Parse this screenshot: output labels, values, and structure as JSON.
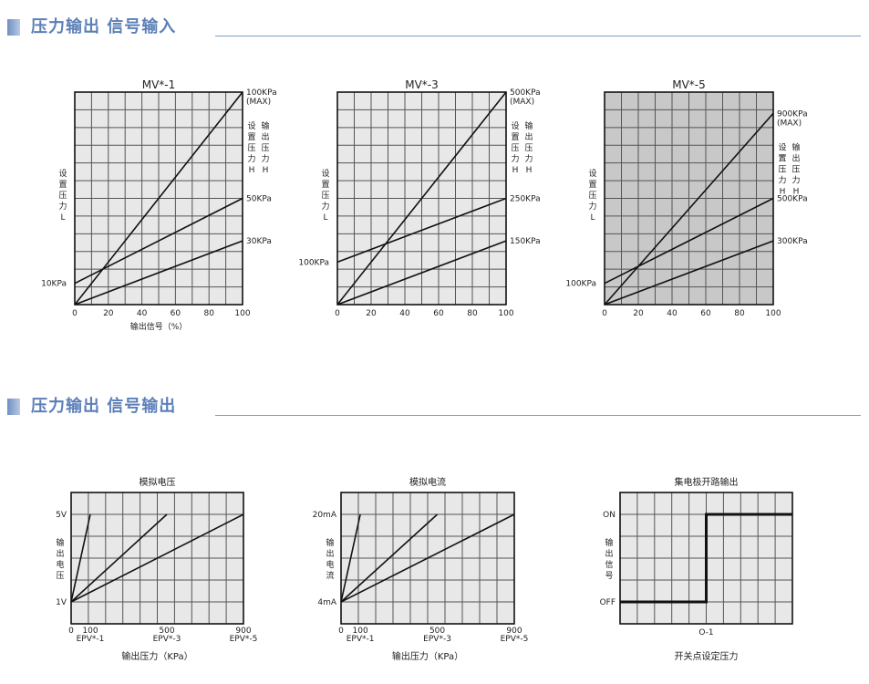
{
  "sections": [
    {
      "title": "压力输出 信号输入"
    },
    {
      "title": "压力输出 信号输出"
    }
  ],
  "colors": {
    "header_text": "#5b7fb8",
    "header_rule": "#7e9cc9",
    "plot_bg": "#e8e8e8",
    "plot_bg_dark": "#c8c8c8",
    "line": "#111111"
  },
  "chart_data": [
    {
      "type": "line",
      "title": "MV*-1",
      "xlabel": "输出信号（%）",
      "ylabel": "设置压力L",
      "right_label": "设置压力H / 输出压力H",
      "x_ticks": [
        "0",
        "20",
        "40",
        "60",
        "80",
        "100"
      ],
      "xlim": [
        0,
        100
      ],
      "ylim": [
        0,
        100
      ],
      "left_tick": "10KPa",
      "series": [
        {
          "name": "100KPa\n(MAX)",
          "x": [
            0,
            100
          ],
          "y": [
            0,
            100
          ]
        },
        {
          "name": "50KPa",
          "x": [
            0,
            100
          ],
          "y": [
            10,
            50
          ]
        },
        {
          "name": "30KPa",
          "x": [
            0,
            100
          ],
          "y": [
            0,
            30
          ]
        }
      ],
      "grid": true
    },
    {
      "type": "line",
      "title": "MV*-3",
      "ylabel": "设置压力L",
      "right_label": "设置压力H / 输出压力H",
      "x_ticks": [
        "0",
        "20",
        "40",
        "60",
        "80",
        "100"
      ],
      "xlim": [
        0,
        100
      ],
      "ylim": [
        0,
        500
      ],
      "left_tick": "100KPa",
      "series": [
        {
          "name": "500KPa\n(MAX)",
          "x": [
            0,
            100
          ],
          "y": [
            0,
            500
          ]
        },
        {
          "name": "250KPa",
          "x": [
            0,
            100
          ],
          "y": [
            100,
            250
          ]
        },
        {
          "name": "150KPa",
          "x": [
            0,
            100
          ],
          "y": [
            0,
            150
          ]
        }
      ],
      "grid": true
    },
    {
      "type": "line",
      "title": "MV*-5",
      "ylabel": "设置压力L",
      "right_label": "设置压力H / 输出压力H",
      "x_ticks": [
        "0",
        "20",
        "40",
        "60",
        "80",
        "100"
      ],
      "xlim": [
        0,
        100
      ],
      "ylim": [
        0,
        1000
      ],
      "left_tick": "100KPa",
      "series": [
        {
          "name": "900KPa\n(MAX)",
          "x": [
            0,
            100
          ],
          "y": [
            0,
            900
          ]
        },
        {
          "name": "500KPa",
          "x": [
            0,
            100
          ],
          "y": [
            100,
            500
          ]
        },
        {
          "name": "300KPa",
          "x": [
            0,
            100
          ],
          "y": [
            0,
            300
          ]
        }
      ],
      "grid": true
    },
    {
      "type": "line",
      "title": "模拟电压",
      "xlabel": "输出压力（KPa）",
      "ylabel": "输出电压",
      "x_ticks": [
        "0",
        "100",
        "500",
        "900"
      ],
      "x_tick_sub": [
        "EPV*-1",
        "EPV*-3",
        "EPV*-5"
      ],
      "xlim": [
        0,
        900
      ],
      "y_ticks": [
        "1V",
        "5V"
      ],
      "y_tick_values": [
        1,
        5
      ],
      "series": [
        {
          "name": "EPV*-1",
          "x": [
            0,
            100
          ],
          "y": [
            1,
            5
          ]
        },
        {
          "name": "EPV*-3",
          "x": [
            0,
            500
          ],
          "y": [
            1,
            5
          ]
        },
        {
          "name": "EPV*-5",
          "x": [
            0,
            900
          ],
          "y": [
            1,
            5
          ]
        }
      ],
      "grid": true
    },
    {
      "type": "line",
      "title": "模拟电流",
      "xlabel": "输出压力（KPa）",
      "ylabel": "输出电流",
      "x_ticks": [
        "0",
        "100",
        "500",
        "900"
      ],
      "x_tick_sub": [
        "EPV*-1",
        "EPV*-3",
        "EPV*-5"
      ],
      "xlim": [
        0,
        900
      ],
      "y_ticks": [
        "4mA",
        "20mA"
      ],
      "y_tick_values": [
        4,
        20
      ],
      "series": [
        {
          "name": "EPV*-1",
          "x": [
            0,
            100
          ],
          "y": [
            4,
            20
          ]
        },
        {
          "name": "EPV*-3",
          "x": [
            0,
            500
          ],
          "y": [
            4,
            20
          ]
        },
        {
          "name": "EPV*-5",
          "x": [
            0,
            900
          ],
          "y": [
            4,
            20
          ]
        }
      ],
      "grid": true
    },
    {
      "type": "line",
      "title": "集电极开路输出",
      "xlabel": "开关点设定压力",
      "ylabel": "输出信号",
      "x_ticks": [
        "O-1"
      ],
      "y_ticks": [
        "OFF",
        "ON"
      ],
      "series": [
        {
          "x": [
            "0",
            "O-1",
            "O-1",
            "max"
          ],
          "y": [
            "OFF",
            "OFF",
            "ON",
            "ON"
          ]
        }
      ],
      "grid": true
    }
  ]
}
